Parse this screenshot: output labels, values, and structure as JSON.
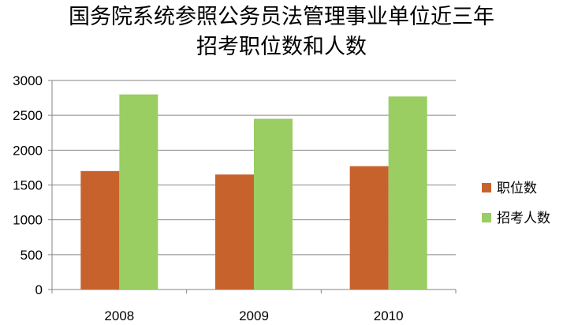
{
  "chart_data": {
    "type": "bar",
    "title_line1": "国务院系统参照公务员法管理事业单位近三年",
    "title_line2": "招考职位数和人数",
    "categories": [
      "2008",
      "2009",
      "2010"
    ],
    "series": [
      {
        "name": "职位数",
        "values": [
          1700,
          1650,
          1770
        ],
        "color": "#C8622C"
      },
      {
        "name": "招考人数",
        "values": [
          2800,
          2450,
          2770
        ],
        "color": "#9ACD62"
      }
    ],
    "ylim": [
      0,
      3000
    ],
    "yticks": [
      0,
      500,
      1000,
      1500,
      2000,
      2500,
      3000
    ],
    "grid": true,
    "legend_position": "right"
  }
}
